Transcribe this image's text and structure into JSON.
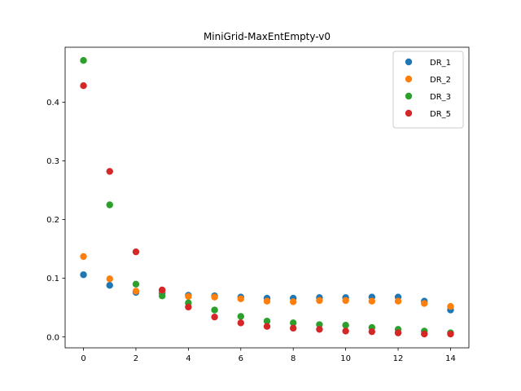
{
  "chart_data": {
    "type": "scatter",
    "title": "MiniGrid-MaxEntEmpty-v0",
    "xlabel": "",
    "ylabel": "",
    "xlim": [
      -0.7,
      14.7
    ],
    "ylim": [
      -0.0185,
      0.4935
    ],
    "xticks": [
      0,
      2,
      4,
      6,
      8,
      10,
      12,
      14
    ],
    "yticks": [
      0.0,
      0.1,
      0.2,
      0.3,
      0.4
    ],
    "ytick_labels": [
      "0.0",
      "0.1",
      "0.2",
      "0.3",
      "0.4"
    ],
    "grid": false,
    "legend_position": "top-right",
    "x": [
      0,
      1,
      2,
      3,
      4,
      5,
      6,
      7,
      8,
      9,
      10,
      11,
      12,
      13,
      14
    ],
    "series": [
      {
        "name": "DR_1",
        "color": "#1f77b4",
        "values": [
          0.106,
          0.088,
          0.076,
          0.075,
          0.071,
          0.07,
          0.068,
          0.066,
          0.066,
          0.067,
          0.067,
          0.068,
          0.068,
          0.061,
          0.046
        ]
      },
      {
        "name": "DR_2",
        "color": "#ff7f0e",
        "values": [
          0.137,
          0.099,
          0.078,
          0.079,
          0.069,
          0.068,
          0.065,
          0.061,
          0.06,
          0.062,
          0.062,
          0.061,
          0.061,
          0.057,
          0.052
        ]
      },
      {
        "name": "DR_3",
        "color": "#2ca02c",
        "values": [
          0.471,
          0.225,
          0.09,
          0.07,
          0.058,
          0.046,
          0.035,
          0.027,
          0.024,
          0.021,
          0.02,
          0.016,
          0.013,
          0.01,
          0.007
        ]
      },
      {
        "name": "DR_5",
        "color": "#d62728",
        "values": [
          0.428,
          0.282,
          0.145,
          0.08,
          0.051,
          0.034,
          0.024,
          0.018,
          0.015,
          0.013,
          0.01,
          0.009,
          0.007,
          0.005,
          0.005
        ]
      }
    ]
  }
}
